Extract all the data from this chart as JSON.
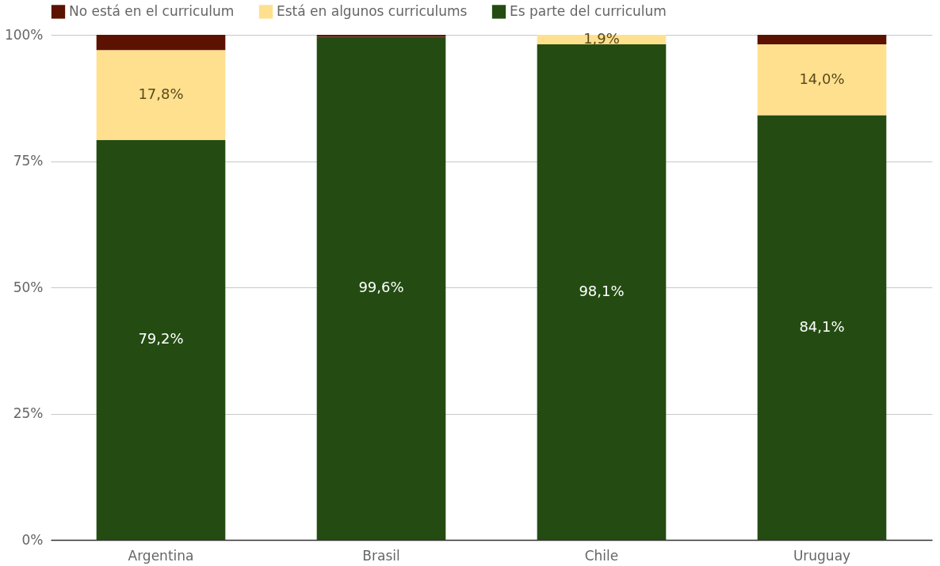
{
  "chart_data": {
    "type": "bar",
    "stacked": true,
    "categories": [
      "Argentina",
      "Brasil",
      "Chile",
      "Uruguay"
    ],
    "series": [
      {
        "name": "Es parte del curriculum",
        "color": "#244c12",
        "values": [
          79.2,
          99.6,
          98.1,
          84.1
        ],
        "value_labels": [
          "79,2%",
          "99,6%",
          "98,1%",
          "84,1%"
        ]
      },
      {
        "name": "Está en algunos curriculums",
        "color": "#ffe08f",
        "values": [
          17.8,
          0,
          1.9,
          14.0
        ],
        "value_labels": [
          "17,8%",
          null,
          "1,9%",
          "14,0%"
        ]
      },
      {
        "name": "No está en el curriculum",
        "color": "#5c1200",
        "values": [
          3.0,
          0.4,
          0,
          1.9
        ],
        "value_labels": [
          null,
          null,
          null,
          null
        ]
      }
    ],
    "ylim": [
      0,
      100
    ],
    "yticks": [
      {
        "value": 0,
        "label": "0%"
      },
      {
        "value": 25,
        "label": "25%"
      },
      {
        "value": 50,
        "label": "50%"
      },
      {
        "value": 75,
        "label": "75%"
      },
      {
        "value": 100,
        "label": "100%"
      }
    ],
    "grid": "y",
    "legend": "top"
  }
}
